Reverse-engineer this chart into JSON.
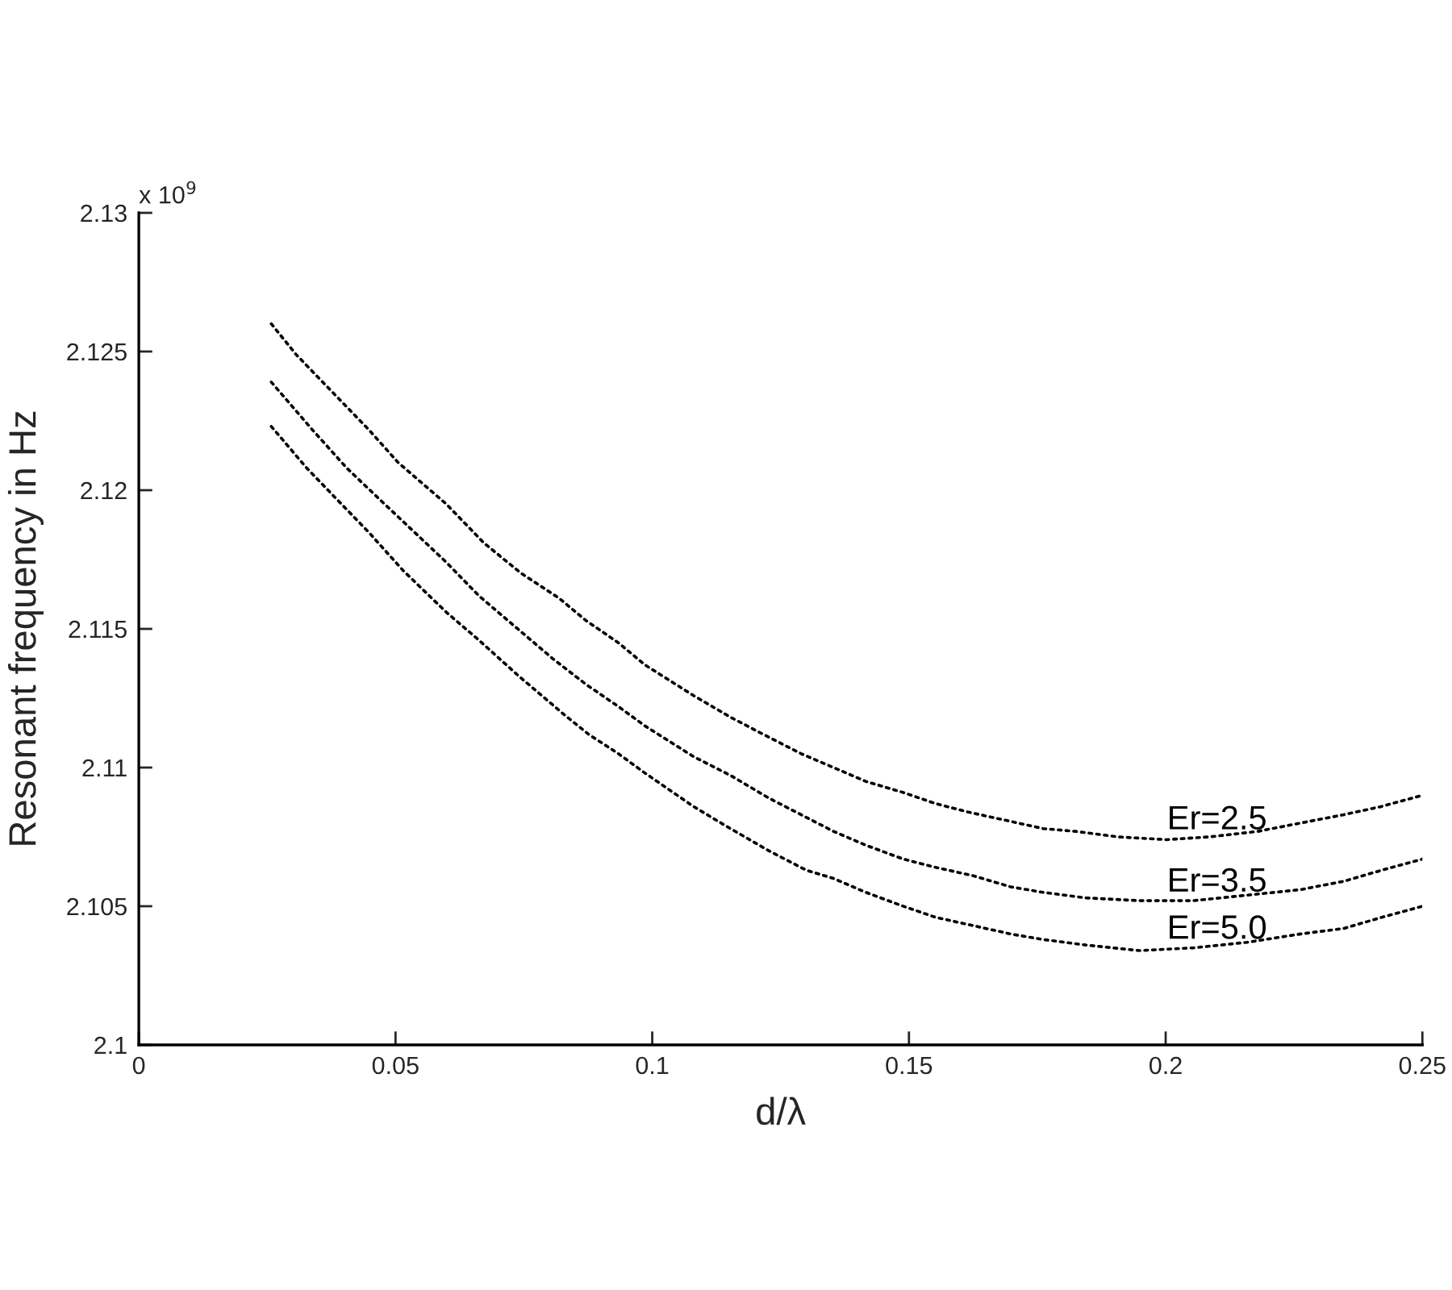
{
  "chart_data": {
    "type": "line",
    "xlabel": "d/λ",
    "ylabel": "Resonant frequency in Hz",
    "annotations": [
      "x 10$^{9}$"
    ],
    "series": [
      {
        "name": "Er=2.5",
        "color": "#000000",
        "x": [
          0.0258,
          0.0306,
          0.0379,
          0.0447,
          0.0505,
          0.0599,
          0.0672,
          0.0745,
          0.0819,
          0.0871,
          0.0934,
          0.0986,
          0.108,
          0.1154,
          0.1216,
          0.129,
          0.1353,
          0.1416,
          0.1489,
          0.1552,
          0.1614,
          0.1688,
          0.1761,
          0.1824,
          0.1907,
          0.2002,
          0.2085,
          0.218,
          0.2263,
          0.2347,
          0.2421,
          0.25
        ],
        "values": [
          2.126,
          2.1249,
          2.1235,
          2.1222,
          2.121,
          2.1195,
          2.1181,
          2.117,
          2.1161,
          2.1153,
          2.1145,
          2.1137,
          2.1126,
          2.1118,
          2.1112,
          2.1105,
          2.11,
          2.1095,
          2.1091,
          2.1087,
          2.1084,
          2.1081,
          2.1078,
          2.1077,
          2.1075,
          2.1074,
          2.1075,
          2.1077,
          2.108,
          2.1083,
          2.1086,
          2.109
        ]
      },
      {
        "name": "Er=3.5",
        "color": "#000000",
        "x": [
          0.0258,
          0.0337,
          0.0405,
          0.0473,
          0.0536,
          0.0599,
          0.0662,
          0.0719,
          0.0808,
          0.0871,
          0.0934,
          0.0986,
          0.108,
          0.1154,
          0.1227,
          0.129,
          0.1353,
          0.1416,
          0.1489,
          0.1552,
          0.1625,
          0.1698,
          0.1761,
          0.1845,
          0.1949,
          0.2054,
          0.2159,
          0.2263,
          0.2347,
          0.2421,
          0.25
        ],
        "values": [
          2.1239,
          2.1222,
          2.1208,
          2.1196,
          2.1185,
          2.1174,
          2.1162,
          2.1153,
          2.1139,
          2.113,
          2.1122,
          2.1115,
          2.1104,
          2.1097,
          2.1089,
          2.1083,
          2.1077,
          2.1072,
          2.1067,
          2.1064,
          2.1061,
          2.1057,
          2.1055,
          2.1053,
          2.1052,
          2.1052,
          2.1054,
          2.1056,
          2.1059,
          2.1063,
          2.1067
        ]
      },
      {
        "name": "Er=5.0",
        "color": "#000000",
        "x": [
          0.0258,
          0.0327,
          0.0379,
          0.0447,
          0.0515,
          0.0599,
          0.0662,
          0.074,
          0.0829,
          0.0876,
          0.0934,
          0.0986,
          0.108,
          0.1143,
          0.1227,
          0.13,
          0.1353,
          0.1416,
          0.1489,
          0.1552,
          0.1625,
          0.1698,
          0.1761,
          0.1845,
          0.1949,
          0.2054,
          0.2159,
          0.2263,
          0.2347,
          0.2421,
          0.25
        ],
        "values": [
          2.1223,
          2.1208,
          2.1198,
          2.1185,
          2.1171,
          2.1156,
          2.1146,
          2.1133,
          2.1119,
          2.1112,
          2.1105,
          2.1098,
          2.1086,
          2.1079,
          2.107,
          2.1063,
          2.106,
          2.1055,
          2.105,
          2.1046,
          2.1043,
          2.104,
          2.1038,
          2.1036,
          2.1034,
          2.1035,
          2.1037,
          2.104,
          2.1042,
          2.1046,
          2.105
        ]
      }
    ],
    "xlim": [
      0,
      0.25
    ],
    "xticks": [
      0,
      0.05,
      0.1,
      0.15,
      0.2,
      0.25
    ],
    "ylim": [
      2.1,
      2.13
    ],
    "yticks": [
      2.1,
      2.105,
      2.11,
      2.115,
      2.12,
      2.125,
      2.13
    ],
    "grid": false,
    "marker": "none",
    "line_style": "dotted"
  }
}
